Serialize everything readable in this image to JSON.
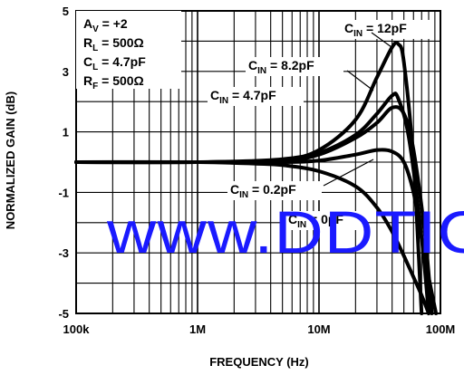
{
  "chart_data": {
    "type": "line",
    "xlabel": "FREQUENCY (Hz)",
    "ylabel": "NORMALIZED GAIN (dB)",
    "xscale": "log",
    "xlim": [
      100000,
      100000000
    ],
    "ylim": [
      -5,
      5
    ],
    "x_tick_labels": [
      "100k",
      "1M",
      "10M",
      "100M"
    ],
    "y_tick_labels": [
      "5",
      "3",
      "1",
      "-1",
      "-3",
      "-5"
    ],
    "grid": true,
    "conditions": [
      {
        "main": "A",
        "sub": "V",
        "rest": " = +2"
      },
      {
        "main": "R",
        "sub": "L",
        "rest": " = 500Ω"
      },
      {
        "main": "C",
        "sub": "L",
        "rest": " = 4.7pF"
      },
      {
        "main": "R",
        "sub": "F",
        "rest": " = 500Ω"
      }
    ],
    "series": [
      {
        "name": "CIN = 12pF",
        "label_main": "C",
        "label_sub": "IN",
        "label_rest": " = 12pF",
        "x": [
          100000,
          1000000,
          5000000,
          10000000,
          20000000,
          30000000,
          40000000,
          45000000,
          50000000,
          60000000,
          70000000
        ],
        "y": [
          0,
          0,
          0.1,
          0.4,
          1.4,
          2.8,
          3.8,
          3.9,
          3.3,
          0,
          -5
        ]
      },
      {
        "name": "CIN = 8.2pF",
        "label_main": "C",
        "label_sub": "IN",
        "label_rest": " = 8.2pF",
        "x": [
          100000,
          1000000,
          5000000,
          10000000,
          20000000,
          30000000,
          40000000,
          45000000,
          55000000,
          70000000,
          80000000
        ],
        "y": [
          0,
          0,
          0.05,
          0.3,
          0.9,
          1.6,
          2.2,
          2.1,
          0.8,
          -2.5,
          -5
        ]
      },
      {
        "name": "CIN = 4.7pF",
        "label_main": "C",
        "label_sub": "IN",
        "label_rest": " = 4.7pF",
        "x": [
          100000,
          1000000,
          5000000,
          10000000,
          20000000,
          30000000,
          40000000,
          50000000,
          60000000,
          75000000,
          85000000
        ],
        "y": [
          0,
          0,
          0.05,
          0.25,
          0.8,
          1.3,
          1.8,
          1.6,
          0.4,
          -2.5,
          -5
        ]
      },
      {
        "name": "CIN = 0.2pF",
        "label_main": "C",
        "label_sub": "IN",
        "label_rest": " = 0.2pF",
        "x": [
          100000,
          1000000,
          5000000,
          10000000,
          20000000,
          30000000,
          40000000,
          50000000,
          60000000,
          70000000,
          80000000,
          92000000
        ],
        "y": [
          0,
          0,
          0,
          0.05,
          0.25,
          0.4,
          0.35,
          0.0,
          -1.0,
          -2.5,
          -3.8,
          -5
        ]
      },
      {
        "name": "CIN = 0pF",
        "label_main": "C",
        "label_sub": "IN",
        "label_rest": " = 0pF",
        "x": [
          100000,
          1000000,
          3000000,
          5000000,
          10000000,
          20000000,
          30000000,
          40000000,
          50000000,
          60000000,
          70000000,
          80000000
        ],
        "y": [
          0,
          0,
          -0.05,
          -0.1,
          -0.3,
          -0.8,
          -1.5,
          -2.3,
          -3.1,
          -3.8,
          -4.4,
          -5
        ]
      }
    ],
    "annotations": {
      "watermark": "www.DDTIC"
    },
    "colors": {
      "line": "#000000",
      "grid": "#000000",
      "watermark": "#1a1aff",
      "background": "#ffffff"
    }
  }
}
